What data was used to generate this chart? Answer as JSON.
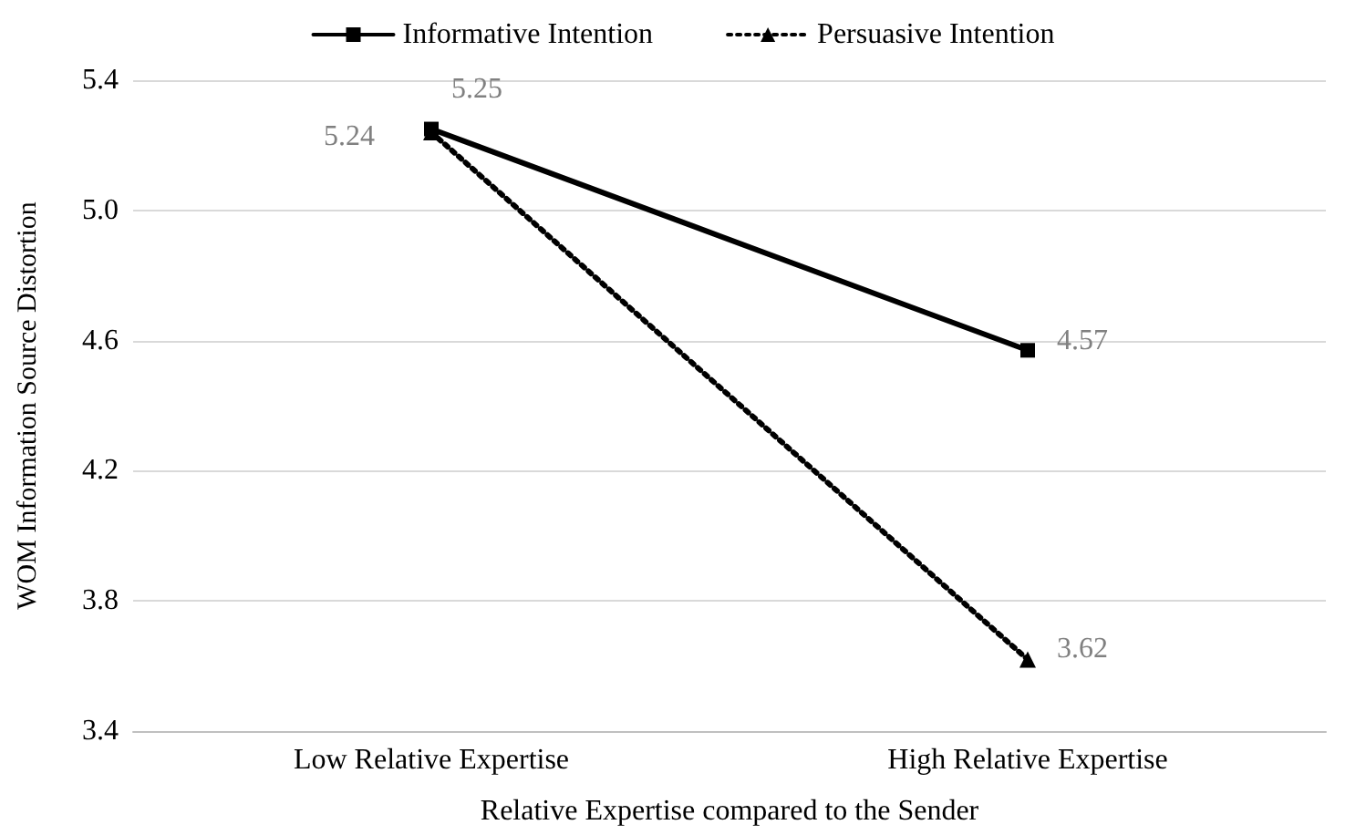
{
  "chart_data": {
    "type": "line",
    "xlabel": "Relative Expertise compared to the Sender",
    "ylabel": "WOM Information Source Distortion",
    "categories": [
      "Low Relative Expertise",
      "High Relative Expertise"
    ],
    "series": [
      {
        "name": "Informative Intention",
        "color": "#000000",
        "values": [
          5.25,
          4.57
        ],
        "marker": "square",
        "line_style": "solid"
      },
      {
        "name": "Persuasive Intention",
        "color": "#000000",
        "values": [
          5.24,
          3.62
        ],
        "marker": "triangle",
        "line_style": "dotted"
      }
    ],
    "ylim": [
      3.4,
      5.4
    ],
    "yticks": [
      3.4,
      3.8,
      4.2,
      4.6,
      {
        "value": 5,
        "label": "5.0"
      },
      5.4
    ],
    "grid": "y",
    "legend": "top",
    "data_labels": true
  }
}
